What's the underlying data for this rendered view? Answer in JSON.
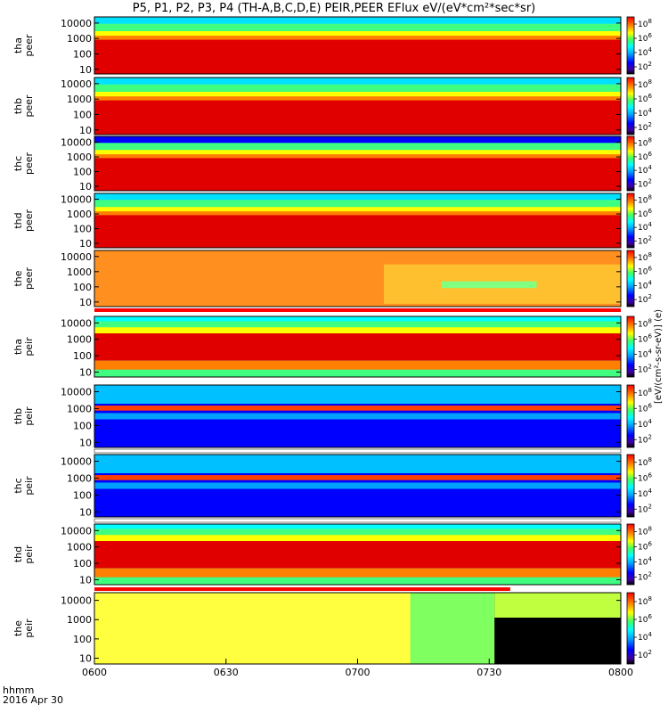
{
  "title": "P5, P1, P2, P3, P4 (TH-A,B,C,D,E) PEIR,PEER EFlux eV/(eV*cm²*sec*sr)",
  "x_caption_line1": "hhmm",
  "x_caption_line2": "2016 Apr 30",
  "colorbar_unit": "[eV/(cm²-s-sr-eV)] (e)",
  "colors": {
    "colormap": [
      "#000080",
      "#0000ff",
      "#00a0ff",
      "#00ffff",
      "#40ff80",
      "#ffff00",
      "#ff8000",
      "#ff0000",
      "#d00000"
    ],
    "fill_white": "#ffffff",
    "fill_red": "#ff0000"
  },
  "chart_data": {
    "type": "heatmap",
    "x_axis": {
      "label": "hhmm",
      "ticks": [
        "0600",
        "0630",
        "0700",
        "0730",
        "0800"
      ],
      "range": [
        "06:00",
        "08:00"
      ]
    },
    "y_scale": "log",
    "y_range_eV": [
      5,
      25000
    ],
    "y_ticks": [
      "10",
      "100",
      "1000",
      "10000"
    ],
    "colorbar_ticks": [
      "10^2",
      "10^4",
      "10^6",
      "10^8"
    ],
    "panels": [
      {
        "probe": "tha",
        "product": "peer",
        "label": "tha peer",
        "colorbar_ticks": [
          "10^2",
          "10^4",
          "10^6",
          "10^8"
        ]
      },
      {
        "probe": "thb",
        "product": "peer",
        "label": "thb peer",
        "colorbar_ticks": [
          "10^2",
          "10^4",
          "10^6",
          "10^8"
        ]
      },
      {
        "probe": "thc",
        "product": "peer",
        "label": "thc peer",
        "colorbar_ticks": [
          "10^2",
          "10^4",
          "10^6",
          "10^8"
        ]
      },
      {
        "probe": "thd",
        "product": "peer",
        "label": "thd peer",
        "colorbar_ticks": [
          "10^2",
          "10^4",
          "10^6",
          "10^8"
        ]
      },
      {
        "probe": "the",
        "product": "peer",
        "label": "the peer",
        "colorbar_ticks": [
          "10^2",
          "10^4",
          "10^6",
          "10^8"
        ]
      },
      {
        "probe": "tha",
        "product": "peir",
        "label": "tha peir",
        "colorbar_ticks": [
          "10^2",
          "10^4",
          "10^6",
          "10^8"
        ]
      },
      {
        "probe": "thb",
        "product": "peir",
        "label": "thb peir",
        "colorbar_ticks": [
          "10^2",
          "10^4",
          "10^6",
          "10^8"
        ]
      },
      {
        "probe": "thc",
        "product": "peir",
        "label": "thc peir",
        "colorbar_ticks": [
          "10^2",
          "10^4",
          "10^6",
          "10^8"
        ]
      },
      {
        "probe": "thd",
        "product": "peir",
        "label": "thd peir",
        "colorbar_ticks": [
          "10^2",
          "10^4",
          "10^6",
          "10^8"
        ]
      },
      {
        "probe": "the",
        "product": "peir",
        "label": "the peir",
        "colorbar_ticks": [
          "10^2",
          "10^4",
          "10^6",
          "10^8"
        ]
      }
    ]
  }
}
